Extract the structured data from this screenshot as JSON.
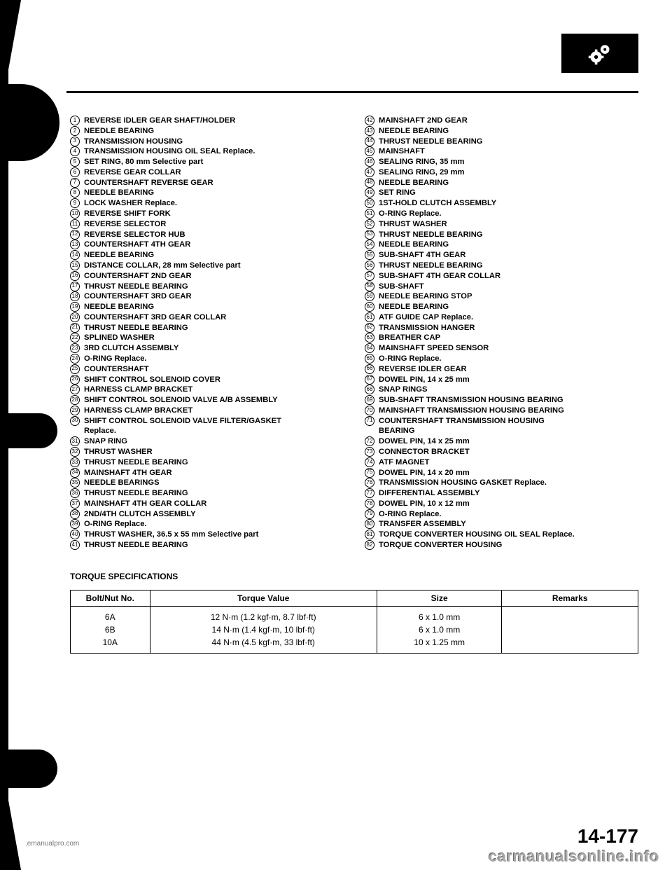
{
  "icon": {
    "name": "gears-icon",
    "bg": "#000000",
    "fg": "#ffffff"
  },
  "left_col": [
    {
      "n": "1",
      "t": "REVERSE IDLER GEAR SHAFT/HOLDER"
    },
    {
      "n": "2",
      "t": "NEEDLE BEARING"
    },
    {
      "n": "3",
      "t": "TRANSMISSION HOUSING"
    },
    {
      "n": "4",
      "t": "TRANSMISSION HOUSING OIL SEAL  Replace."
    },
    {
      "n": "5",
      "t": "SET RING, 80 mm  Selective part"
    },
    {
      "n": "6",
      "t": "REVERSE GEAR COLLAR"
    },
    {
      "n": "7",
      "t": "COUNTERSHAFT REVERSE GEAR"
    },
    {
      "n": "8",
      "t": "NEEDLE BEARING"
    },
    {
      "n": "9",
      "t": "LOCK WASHER  Replace."
    },
    {
      "n": "10",
      "t": "REVERSE SHIFT FORK"
    },
    {
      "n": "11",
      "t": "REVERSE SELECTOR"
    },
    {
      "n": "12",
      "t": "REVERSE SELECTOR HUB"
    },
    {
      "n": "13",
      "t": "COUNTERSHAFT 4TH GEAR"
    },
    {
      "n": "14",
      "t": "NEEDLE BEARING"
    },
    {
      "n": "15",
      "t": "DISTANCE COLLAR, 28 mm  Selective part"
    },
    {
      "n": "16",
      "t": "COUNTERSHAFT 2ND GEAR"
    },
    {
      "n": "17",
      "t": "THRUST NEEDLE BEARING"
    },
    {
      "n": "18",
      "t": "COUNTERSHAFT 3RD GEAR"
    },
    {
      "n": "19",
      "t": "NEEDLE BEARING"
    },
    {
      "n": "20",
      "t": "COUNTERSHAFT 3RD GEAR COLLAR"
    },
    {
      "n": "21",
      "t": "THRUST NEEDLE BEARING"
    },
    {
      "n": "22",
      "t": "SPLINED WASHER"
    },
    {
      "n": "23",
      "t": "3RD CLUTCH ASSEMBLY"
    },
    {
      "n": "24",
      "t": "O-RING  Replace."
    },
    {
      "n": "25",
      "t": "COUNTERSHAFT"
    },
    {
      "n": "26",
      "t": "SHIFT CONTROL SOLENOID COVER"
    },
    {
      "n": "27",
      "t": "HARNESS CLAMP BRACKET"
    },
    {
      "n": "28",
      "t": "SHIFT CONTROL SOLENOID VALVE A/B ASSEMBLY"
    },
    {
      "n": "29",
      "t": "HARNESS CLAMP BRACKET"
    },
    {
      "n": "30",
      "t": "SHIFT CONTROL SOLENOID VALVE FILTER/GASKET"
    },
    {
      "n": "",
      "t": "Replace.",
      "indent": true
    },
    {
      "n": "31",
      "t": "SNAP RING"
    },
    {
      "n": "32",
      "t": "THRUST WASHER"
    },
    {
      "n": "33",
      "t": "THRUST NEEDLE BEARING"
    },
    {
      "n": "34",
      "t": "MAINSHAFT 4TH GEAR"
    },
    {
      "n": "35",
      "t": "NEEDLE BEARINGS"
    },
    {
      "n": "36",
      "t": "THRUST NEEDLE BEARING"
    },
    {
      "n": "37",
      "t": "MAINSHAFT 4TH GEAR COLLAR"
    },
    {
      "n": "38",
      "t": "2ND/4TH CLUTCH ASSEMBLY"
    },
    {
      "n": "39",
      "t": "O-RING  Replace."
    },
    {
      "n": "40",
      "t": "THRUST WASHER, 36.5 x 55 mm  Selective part"
    },
    {
      "n": "41",
      "t": "THRUST NEEDLE BEARING"
    }
  ],
  "right_col": [
    {
      "n": "42",
      "t": "MAINSHAFT 2ND GEAR"
    },
    {
      "n": "43",
      "t": "NEEDLE BEARING"
    },
    {
      "n": "44",
      "t": "THRUST NEEDLE BEARING"
    },
    {
      "n": "45",
      "t": "MAINSHAFT"
    },
    {
      "n": "46",
      "t": "SEALING RING, 35 mm"
    },
    {
      "n": "47",
      "t": "SEALING RING, 29 mm"
    },
    {
      "n": "48",
      "t": "NEEDLE BEARING"
    },
    {
      "n": "49",
      "t": "SET RING"
    },
    {
      "n": "50",
      "t": "1ST-HOLD CLUTCH ASSEMBLY"
    },
    {
      "n": "51",
      "t": "O-RING  Replace."
    },
    {
      "n": "52",
      "t": "THRUST WASHER"
    },
    {
      "n": "53",
      "t": "THRUST NEEDLE BEARING"
    },
    {
      "n": "54",
      "t": "NEEDLE BEARING"
    },
    {
      "n": "55",
      "t": "SUB-SHAFT 4TH GEAR"
    },
    {
      "n": "56",
      "t": "THRUST NEEDLE BEARING"
    },
    {
      "n": "57",
      "t": "SUB-SHAFT 4TH GEAR COLLAR"
    },
    {
      "n": "58",
      "t": "SUB-SHAFT"
    },
    {
      "n": "59",
      "t": "NEEDLE BEARING STOP"
    },
    {
      "n": "60",
      "t": "NEEDLE BEARING"
    },
    {
      "n": "61",
      "t": "ATF GUIDE CAP  Replace."
    },
    {
      "n": "62",
      "t": "TRANSMISSION HANGER"
    },
    {
      "n": "63",
      "t": "BREATHER CAP"
    },
    {
      "n": "64",
      "t": "MAINSHAFT SPEED SENSOR"
    },
    {
      "n": "65",
      "t": "O-RING  Replace."
    },
    {
      "n": "66",
      "t": "REVERSE IDLER GEAR"
    },
    {
      "n": "67",
      "t": "DOWEL PIN, 14 x 25 mm"
    },
    {
      "n": "68",
      "t": "SNAP RINGS"
    },
    {
      "n": "69",
      "t": "SUB-SHAFT TRANSMISSION HOUSING BEARING"
    },
    {
      "n": "70",
      "t": "MAINSHAFT TRANSMISSION HOUSING BEARING"
    },
    {
      "n": "71",
      "t": "COUNTERSHAFT TRANSMISSION HOUSING"
    },
    {
      "n": "",
      "t": "BEARING",
      "indent": true
    },
    {
      "n": "72",
      "t": "DOWEL PIN, 14 x 25 mm"
    },
    {
      "n": "73",
      "t": "CONNECTOR BRACKET"
    },
    {
      "n": "74",
      "t": "ATF MAGNET"
    },
    {
      "n": "75",
      "t": "DOWEL PIN, 14 x 20 mm"
    },
    {
      "n": "76",
      "t": "TRANSMISSION HOUSING GASKET  Replace."
    },
    {
      "n": "77",
      "t": "DIFFERENTIAL ASSEMBLY"
    },
    {
      "n": "78",
      "t": "DOWEL PIN, 10 x 12 mm"
    },
    {
      "n": "79",
      "t": "O-RING  Replace."
    },
    {
      "n": "80",
      "t": "TRANSFER ASSEMBLY"
    },
    {
      "n": "81",
      "t": "TORQUE CONVERTER HOUSING OIL SEAL  Replace."
    },
    {
      "n": "82",
      "t": "TORQUE CONVERTER HOUSING"
    }
  ],
  "torque_title": "TORQUE SPECIFICATIONS",
  "torque_table": {
    "headers": [
      "Bolt/Nut No.",
      "Torque Value",
      "Size",
      "Remarks"
    ],
    "rows": [
      [
        "6A",
        "12 N·m (1.2 kgf·m, 8.7 lbf·ft)",
        "6 x 1.0 mm",
        ""
      ],
      [
        "6B",
        "14 N·m (1.4 kgf·m, 10 lbf·ft)",
        "6 x 1.0 mm",
        ""
      ],
      [
        "10A",
        "44 N·m (4.5 kgf·m, 33 lbf·ft)",
        "10 x 1.25 mm",
        ""
      ]
    ],
    "col_widths": [
      "14%",
      "40%",
      "22%",
      "24%"
    ]
  },
  "footer_left": ".emanualpro.com",
  "page_number": "14-177",
  "watermark": "carmanualsonline.info"
}
